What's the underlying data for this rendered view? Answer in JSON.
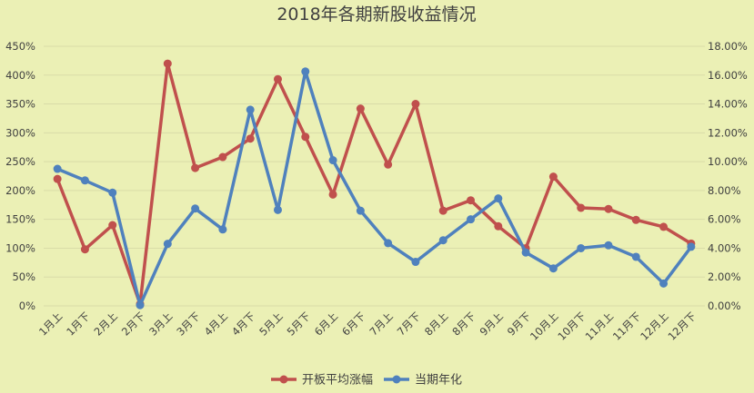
{
  "chart_data": {
    "type": "line",
    "title": "2018年各期新股收益情况",
    "categories": [
      "1月上",
      "1月下",
      "2月上",
      "2月下",
      "3月上",
      "3月下",
      "4月上",
      "4月下",
      "5月上",
      "5月下",
      "6月上",
      "6月下",
      "7月上",
      "7月下",
      "8月上",
      "8月下",
      "9月上",
      "9月下",
      "10月上",
      "10月下",
      "11月上",
      "11月下",
      "12月上",
      "12月下"
    ],
    "left_axis": {
      "ticks": [
        "0%",
        "50%",
        "100%",
        "150%",
        "200%",
        "250%",
        "300%",
        "350%",
        "400%",
        "450%"
      ],
      "ylim": [
        0,
        450
      ]
    },
    "right_axis": {
      "ticks": [
        "0.00%",
        "2.00%",
        "4.00%",
        "6.00%",
        "8.00%",
        "10.00%",
        "12.00%",
        "14.00%",
        "16.00%",
        "18.00%"
      ],
      "ylim": [
        0,
        18
      ]
    },
    "grid": true,
    "legend_position": "bottom",
    "series": [
      {
        "name": "开板平均涨幅",
        "axis": "left",
        "color": "#c0504d",
        "values": [
          220,
          98,
          140,
          3,
          420,
          239,
          258,
          290,
          393,
          293,
          193,
          342,
          245,
          350,
          165,
          183,
          138,
          100,
          224,
          170,
          168,
          149,
          137,
          108
        ]
      },
      {
        "name": "当期年化",
        "axis": "right",
        "color": "#4f81bd",
        "values": [
          9.5,
          8.7,
          7.85,
          0.05,
          4.3,
          6.75,
          5.3,
          13.6,
          6.65,
          16.25,
          10.1,
          6.6,
          4.35,
          3.05,
          4.55,
          6.0,
          7.45,
          3.7,
          2.6,
          4.0,
          4.2,
          3.4,
          1.55,
          4.1
        ]
      }
    ]
  }
}
